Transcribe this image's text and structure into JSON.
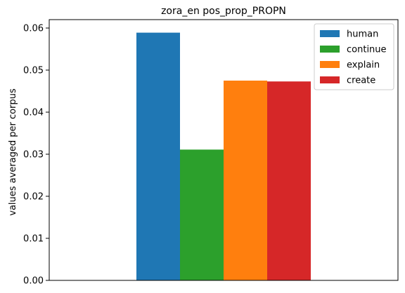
{
  "chart_data": {
    "type": "bar",
    "title": "zora_en pos_prop_PROPN",
    "xlabel": "",
    "ylabel": "values averaged per corpus",
    "ylim": [
      0,
      0.062
    ],
    "yticks": [
      "0.00",
      "0.01",
      "0.02",
      "0.03",
      "0.04",
      "0.05",
      "0.06"
    ],
    "grid": false,
    "legend_position": "top-right",
    "series": [
      {
        "name": "human",
        "value": 0.0589,
        "color": "#1f77b4"
      },
      {
        "name": "continue",
        "value": 0.0311,
        "color": "#2ca02c"
      },
      {
        "name": "explain",
        "value": 0.0475,
        "color": "#ff7f0e"
      },
      {
        "name": "create",
        "value": 0.0473,
        "color": "#d62728"
      }
    ]
  }
}
